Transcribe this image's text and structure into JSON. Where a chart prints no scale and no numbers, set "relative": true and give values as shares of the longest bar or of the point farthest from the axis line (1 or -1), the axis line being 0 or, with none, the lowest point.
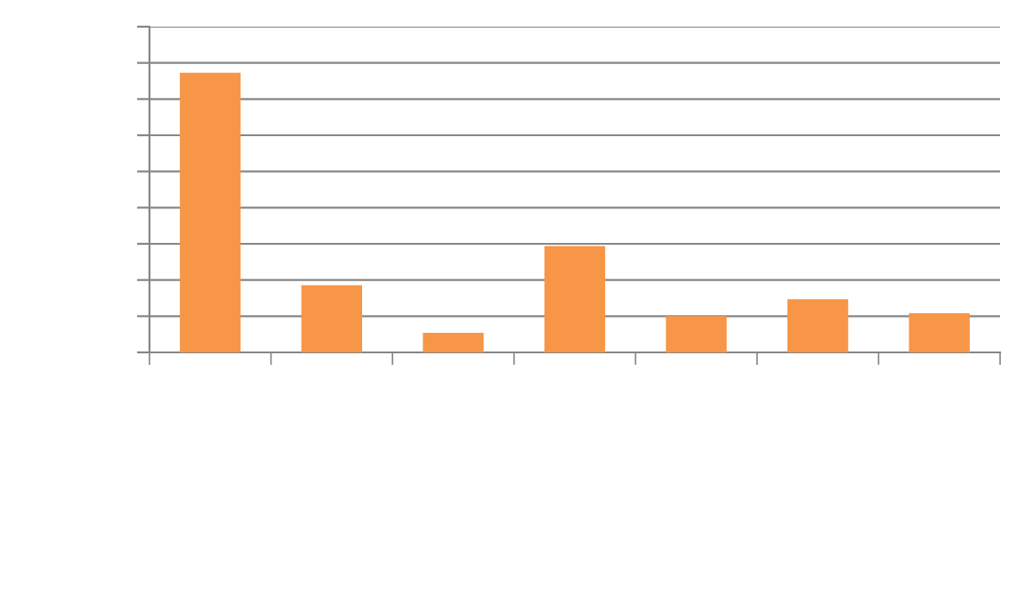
{
  "chart_data": {
    "type": "bar",
    "relative": true,
    "categories": [
      null,
      null,
      null,
      null,
      null,
      null,
      null
    ],
    "values": [
      1,
      0.24,
      0.07,
      0.38,
      0.13,
      0.19,
      0.14
    ],
    "color": "#f79646",
    "grid": "y"
  }
}
